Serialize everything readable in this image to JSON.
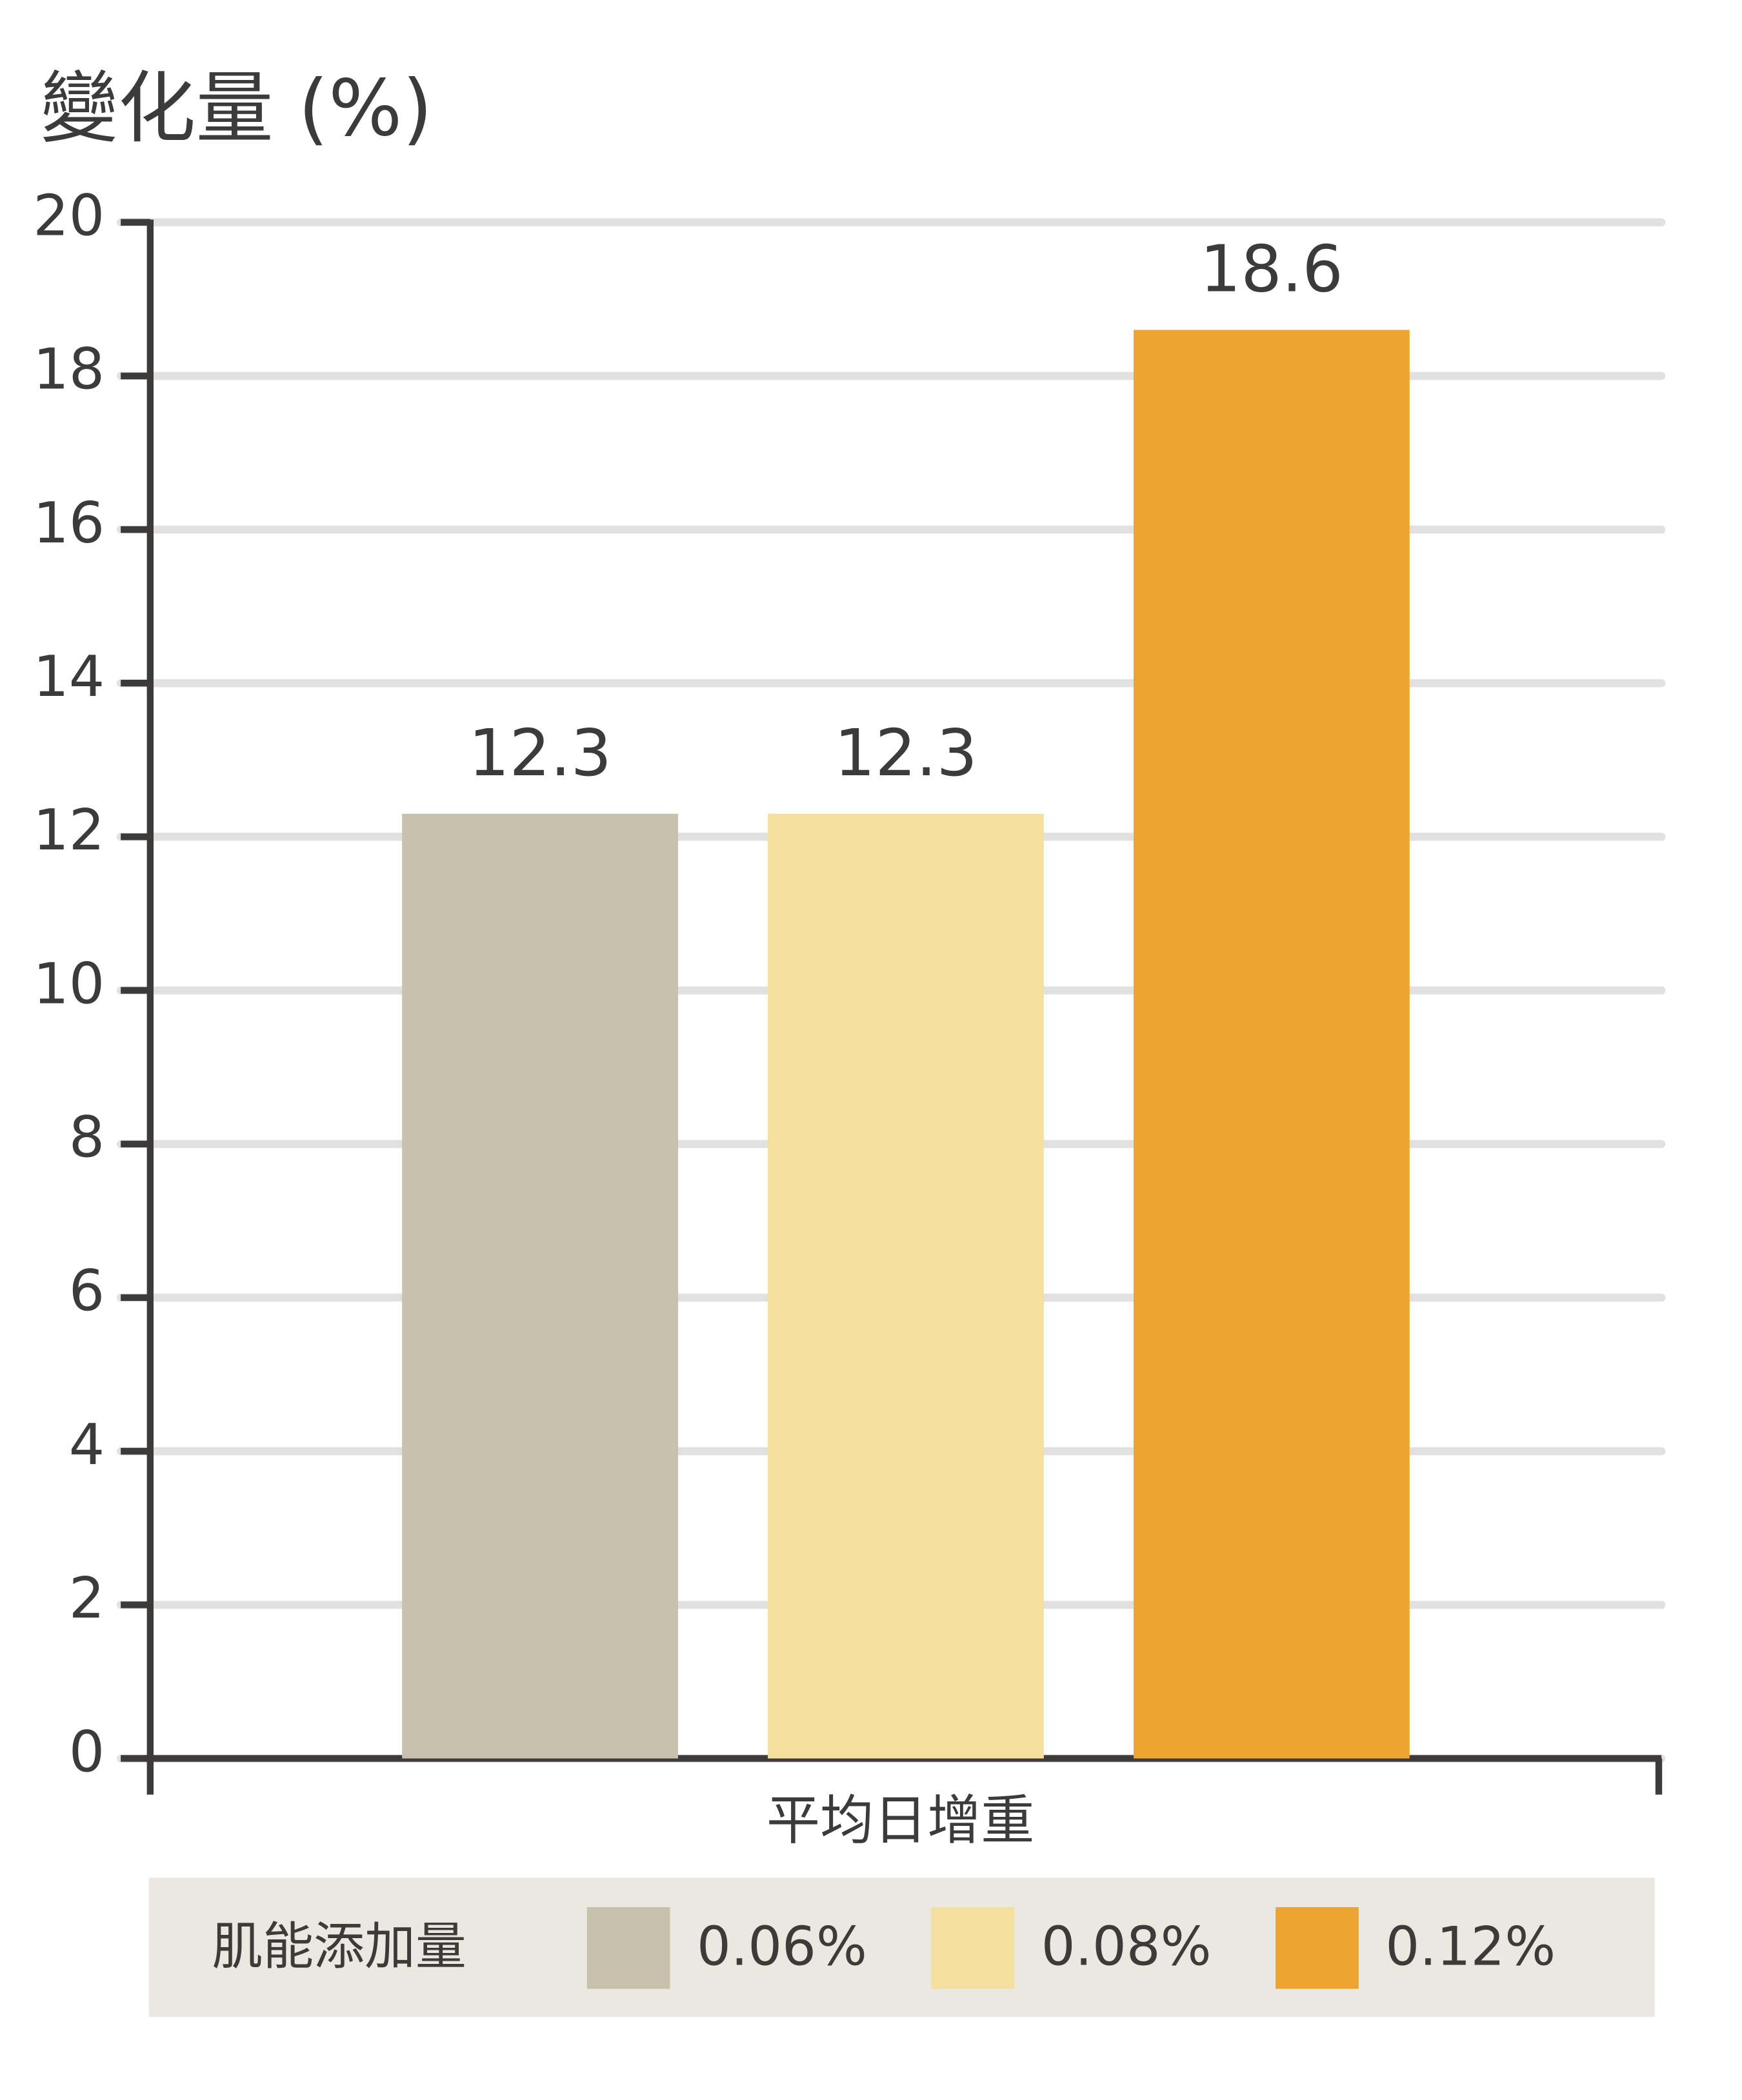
{
  "chart_data": {
    "type": "bar",
    "title": "變化量 (%)",
    "categories": [
      "平均日增重"
    ],
    "series": [
      {
        "name": "0.06%",
        "color": "#c6c0ad",
        "values": [
          12.3
        ]
      },
      {
        "name": "0.08%",
        "color": "#f5df9e",
        "values": [
          12.3
        ]
      },
      {
        "name": "0.12%",
        "color": "#eea431",
        "values": [
          18.6
        ]
      }
    ],
    "ylim": [
      0,
      20
    ],
    "yticks": [
      0,
      2,
      4,
      6,
      8,
      10,
      12,
      14,
      16,
      18,
      20
    ],
    "grid": true,
    "legend_title": "肌能添加量",
    "legend": "bottom"
  }
}
